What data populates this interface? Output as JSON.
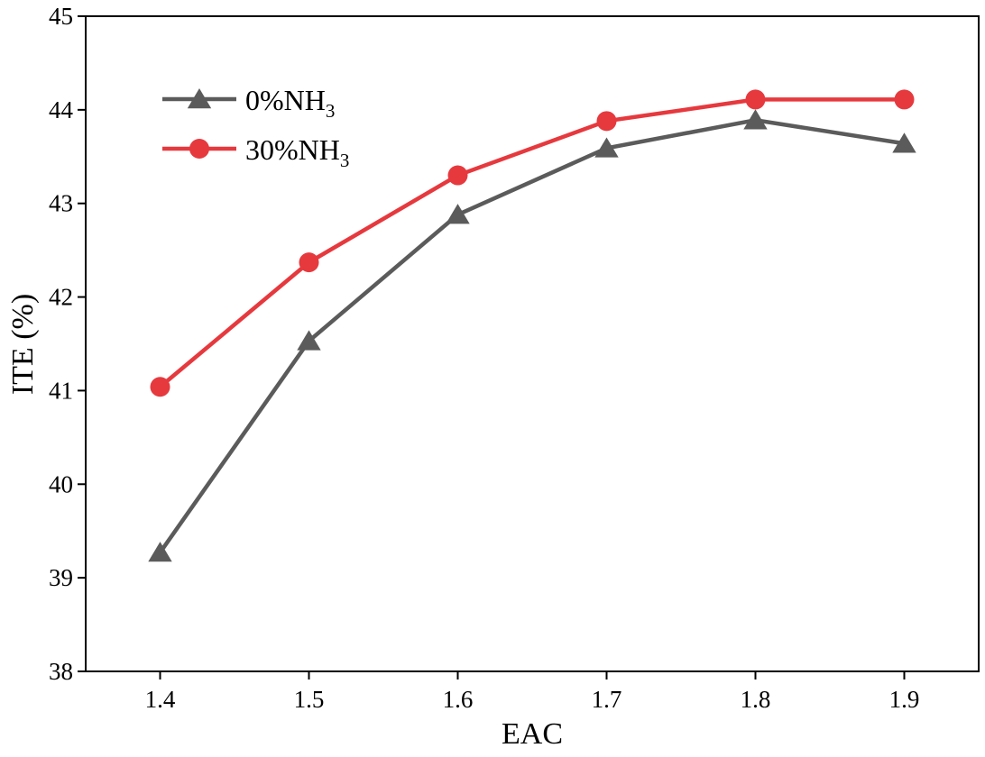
{
  "chart_data": {
    "type": "line",
    "title": "",
    "xlabel": "EAC",
    "ylabel": "ITE (%)",
    "xlim": [
      1.35,
      1.95
    ],
    "ylim": [
      38,
      45
    ],
    "x": [
      1.4,
      1.5,
      1.6,
      1.7,
      1.8,
      1.9
    ],
    "x_ticks": [
      "1.4",
      "1.5",
      "1.6",
      "1.7",
      "1.8",
      "1.9"
    ],
    "y_ticks": [
      "38",
      "39",
      "40",
      "41",
      "42",
      "43",
      "44",
      "45"
    ],
    "grid": false,
    "legend_position": "top-left",
    "series": [
      {
        "name": "0%NH",
        "subscript": "3",
        "color": "#5b5b5b",
        "marker": "triangle",
        "values": [
          39.27,
          41.53,
          42.88,
          43.59,
          43.89,
          43.64
        ]
      },
      {
        "name": "30%NH",
        "subscript": "3",
        "color": "#e6393e",
        "marker": "circle",
        "values": [
          41.04,
          42.37,
          43.3,
          43.88,
          44.11,
          44.11
        ]
      }
    ]
  }
}
